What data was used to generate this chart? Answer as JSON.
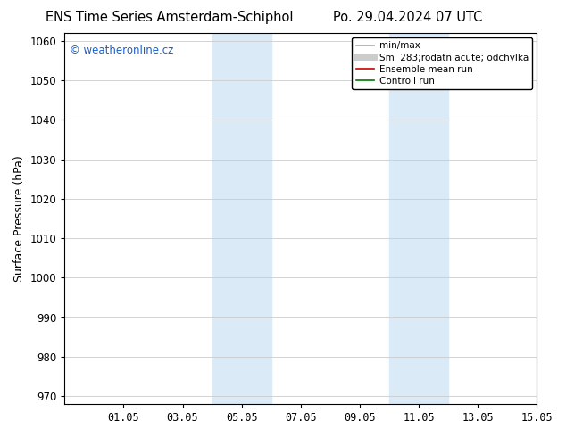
{
  "title_left": "ENS Time Series Amsterdam-Schiphol",
  "title_right": "Po. 29.04.2024 07 UTC",
  "ylabel": "Surface Pressure (hPa)",
  "ylim": [
    968,
    1062
  ],
  "yticks": [
    970,
    980,
    990,
    1000,
    1010,
    1020,
    1030,
    1040,
    1050,
    1060
  ],
  "xlim": [
    0,
    16
  ],
  "xtick_labels": [
    "01.05",
    "03.05",
    "05.05",
    "07.05",
    "09.05",
    "11.05",
    "13.05",
    "15.05"
  ],
  "xtick_positions": [
    2,
    4,
    6,
    8,
    10,
    12,
    14,
    16
  ],
  "shaded_regions": [
    {
      "x_start": 5,
      "x_end": 7
    },
    {
      "x_start": 11,
      "x_end": 13
    }
  ],
  "shaded_color": "#daeaf7",
  "watermark_text": "© weatheronline.cz",
  "watermark_color": "#1a5fcc",
  "legend_entries": [
    {
      "label": "min/max",
      "color": "#aaaaaa",
      "lw": 1.2,
      "style": "line"
    },
    {
      "label": "Sm  283;rodatn acute; odchylka",
      "color": "#cccccc",
      "lw": 5,
      "style": "line"
    },
    {
      "label": "Ensemble mean run",
      "color": "#cc0000",
      "lw": 1.2,
      "style": "line"
    },
    {
      "label": "Controll run",
      "color": "#007700",
      "lw": 1.2,
      "style": "line"
    }
  ],
  "background_color": "#ffffff",
  "grid_color": "#cccccc",
  "title_fontsize": 10.5,
  "tick_fontsize": 8.5,
  "ylabel_fontsize": 9,
  "watermark_fontsize": 8.5
}
